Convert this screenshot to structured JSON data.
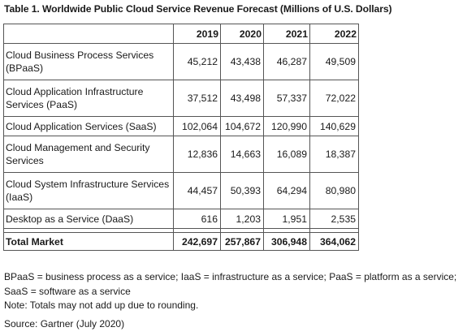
{
  "title": "Table 1. Worldwide Public Cloud Service Revenue Forecast (Millions of U.S. Dollars)",
  "table": {
    "columns": [
      "",
      "2019",
      "2020",
      "2021",
      "2022"
    ],
    "rows": [
      {
        "label": "Cloud Business Process Services (BPaaS)",
        "values": [
          "45,212",
          "43,438",
          "46,287",
          "49,509"
        ]
      },
      {
        "label": "Cloud Application Infrastructure Services (PaaS)",
        "values": [
          "37,512",
          "43,498",
          "57,337",
          "72,022"
        ]
      },
      {
        "label": "Cloud Application Services (SaaS)",
        "values": [
          "102,064",
          "104,672",
          "120,990",
          "140,629"
        ]
      },
      {
        "label": "Cloud Management and Security Services",
        "values": [
          "12,836",
          "14,663",
          "16,089",
          "18,387"
        ]
      },
      {
        "label": "Cloud System Infrastructure Services (IaaS)",
        "values": [
          "44,457",
          "50,393",
          "64,294",
          "80,980"
        ]
      },
      {
        "label": "Desktop as a Service (DaaS)",
        "values": [
          "616",
          "1,203",
          "1,951",
          "2,535"
        ]
      }
    ],
    "total": {
      "label": "Total Market",
      "values": [
        "242,697",
        "257,867",
        "306,948",
        "364,062"
      ]
    }
  },
  "notes": {
    "abbreviations": "BPaaS = business process as a service; IaaS = infrastructure as a service; PaaS = platform as a service; SaaS = software as a service",
    "rounding": "Note: Totals may not add up due to rounding."
  },
  "source": "Source: Gartner (July 2020)"
}
